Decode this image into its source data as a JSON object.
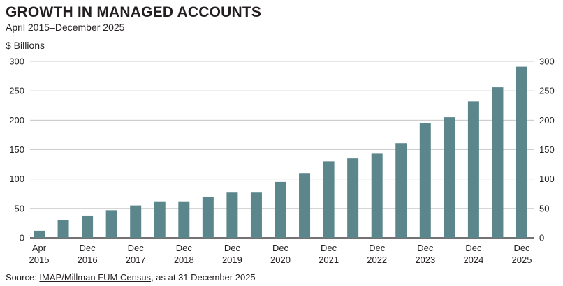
{
  "header": {
    "title": "GROWTH IN MANAGED ACCOUNTS",
    "subtitle": "April 2015–December 2025",
    "unit": "$ Billions"
  },
  "source": {
    "prefix": "Source: ",
    "link": "IMAP/Millman FUM Census",
    "suffix": ", as at 31 December 2025"
  },
  "colors": {
    "bar": "#5b878c",
    "grid": "#bdbdbd",
    "axis": "#231f20"
  },
  "chart_data": {
    "type": "bar",
    "title": "GROWTH IN MANAGED ACCOUNTS",
    "subtitle": "April 2015–December 2025",
    "ylabel": "$ Billions",
    "ylim": [
      0,
      300
    ],
    "yticks": [
      0,
      50,
      100,
      150,
      200,
      250,
      300
    ],
    "grid": true,
    "categories": [
      "Apr 2015",
      "",
      "Dec 2016",
      "",
      "Dec 2017",
      "",
      "Dec 2018",
      "",
      "Dec 2019",
      "",
      "Dec 2020",
      "",
      "Dec 2021",
      "",
      "Dec 2022",
      "",
      "Dec 2023",
      "",
      "Dec 2024",
      "",
      "Dec 2025"
    ],
    "values": [
      12,
      30,
      38,
      47,
      55,
      62,
      62,
      70,
      78,
      78,
      95,
      110,
      130,
      135,
      143,
      161,
      195,
      205,
      232,
      256,
      291
    ],
    "xtick_labels": [
      {
        "index": 0,
        "line1": "Apr",
        "line2": "2015"
      },
      {
        "index": 2,
        "line1": "Dec",
        "line2": "2016"
      },
      {
        "index": 4,
        "line1": "Dec",
        "line2": "2017"
      },
      {
        "index": 6,
        "line1": "Dec",
        "line2": "2018"
      },
      {
        "index": 8,
        "line1": "Dec",
        "line2": "2019"
      },
      {
        "index": 10,
        "line1": "Dec",
        "line2": "2020"
      },
      {
        "index": 12,
        "line1": "Dec",
        "line2": "2021"
      },
      {
        "index": 14,
        "line1": "Dec",
        "line2": "2022"
      },
      {
        "index": 16,
        "line1": "Dec",
        "line2": "2023"
      },
      {
        "index": 18,
        "line1": "Dec",
        "line2": "2024"
      },
      {
        "index": 20,
        "line1": "Dec",
        "line2": "2025"
      }
    ]
  }
}
